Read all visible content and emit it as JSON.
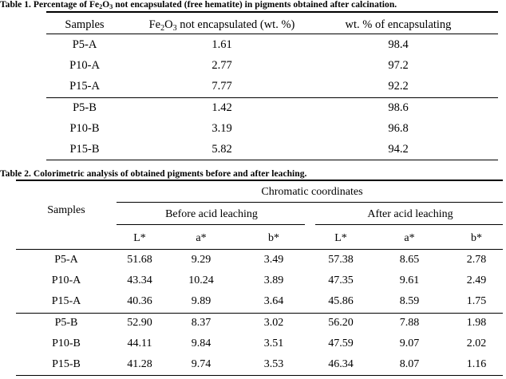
{
  "table1": {
    "caption_pre": "Table 1. Percentage of Fe",
    "caption_sub1": "2",
    "caption_mid": "O",
    "caption_sub2": "3",
    "caption_post": " not encapsulated (free hematite) in pigments obtained after calcination.",
    "headers": {
      "samples": "Samples",
      "col2_pre": "Fe",
      "col2_sub1": "2",
      "col2_mid": "O",
      "col2_sub2": "3",
      "col2_post": " not encapsulated (wt. %)",
      "col3": "wt. % of encapsulating"
    },
    "rows": [
      [
        "P5-A",
        "1.61",
        "98.4"
      ],
      [
        "P10-A",
        "2.77",
        "97.2"
      ],
      [
        "P15-A",
        "7.77",
        "92.2"
      ],
      [
        "P5-B",
        "1.42",
        "98.6"
      ],
      [
        "P10-B",
        "3.19",
        "96.8"
      ],
      [
        "P15-B",
        "5.82",
        "94.2"
      ]
    ]
  },
  "table2": {
    "caption": "Table 2. Colorimetric analysis of obtained pigments before and after leaching.",
    "headers": {
      "samples": "Samples",
      "chromatic": "Chromatic coordinates",
      "before": "Before acid leaching",
      "after": "After acid leaching",
      "coords": [
        "L*",
        "a*",
        "b*",
        "L*",
        "a*",
        "b*"
      ]
    },
    "rows": [
      [
        "P5-A",
        "51.68",
        "9.29",
        "3.49",
        "57.38",
        "8.65",
        "2.78"
      ],
      [
        "P10-A",
        "43.34",
        "10.24",
        "3.89",
        "47.35",
        "9.61",
        "2.49"
      ],
      [
        "P15-A",
        "40.36",
        "9.89",
        "3.64",
        "45.86",
        "8.59",
        "1.75"
      ],
      [
        "P5-B",
        "52.90",
        "8.37",
        "3.02",
        "56.20",
        "7.88",
        "1.98"
      ],
      [
        "P10-B",
        "44.11",
        "9.84",
        "3.51",
        "47.59",
        "9.07",
        "2.02"
      ],
      [
        "P15-B",
        "41.28",
        "9.74",
        "3.53",
        "46.34",
        "8.07",
        "1.16"
      ]
    ]
  }
}
